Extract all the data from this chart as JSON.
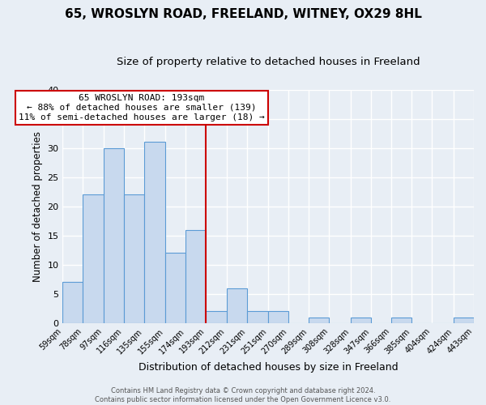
{
  "title": "65, WROSLYN ROAD, FREELAND, WITNEY, OX29 8HL",
  "subtitle": "Size of property relative to detached houses in Freeland",
  "xlabel": "Distribution of detached houses by size in Freeland",
  "ylabel": "Number of detached properties",
  "bin_edges": [
    59,
    78,
    97,
    116,
    135,
    155,
    174,
    193,
    212,
    231,
    251,
    270,
    289,
    308,
    328,
    347,
    366,
    385,
    404,
    424,
    443
  ],
  "bin_heights": [
    7,
    22,
    30,
    22,
    31,
    12,
    16,
    2,
    6,
    2,
    2,
    0,
    1,
    0,
    1,
    0,
    1,
    0,
    0,
    1
  ],
  "bar_color": "#c8d9ee",
  "bar_edge_color": "#5b9bd5",
  "vline_x": 193,
  "vline_color": "#cc0000",
  "ylim": [
    0,
    40
  ],
  "annotation_title": "65 WROSLYN ROAD: 193sqm",
  "annotation_line1": "← 88% of detached houses are smaller (139)",
  "annotation_line2": "11% of semi-detached houses are larger (18) →",
  "annotation_box_facecolor": "#ffffff",
  "annotation_box_edgecolor": "#cc0000",
  "footer_line1": "Contains HM Land Registry data © Crown copyright and database right 2024.",
  "footer_line2": "Contains public sector information licensed under the Open Government Licence v3.0.",
  "background_color": "#e8eef5",
  "plot_bg_color": "#e8eef5",
  "grid_color": "#ffffff",
  "title_fontsize": 11,
  "subtitle_fontsize": 9.5,
  "tick_label_size": 7,
  "ylabel_fontsize": 8.5,
  "xlabel_fontsize": 9,
  "annotation_fontsize": 8,
  "footer_fontsize": 6
}
